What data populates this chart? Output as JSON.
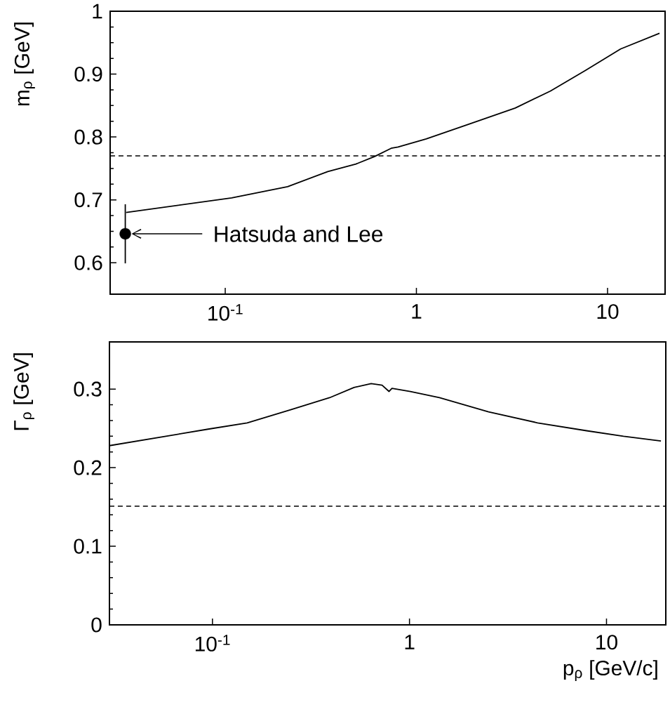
{
  "chart_data": [
    {
      "type": "line",
      "log": "x",
      "xlim": [
        0.025,
        20
      ],
      "ylim": [
        0.55,
        1
      ],
      "xticks": [
        {
          "value": 0.1,
          "label": "10$^{-1}$"
        },
        1,
        10
      ],
      "yticks": [
        0.6,
        0.7,
        0.8,
        0.9,
        1
      ],
      "ylabel": "m$_{ρ}$  [GeV]",
      "ref_lines": [
        {
          "axis": "y",
          "value": 0.77,
          "line_style": "dashed"
        }
      ],
      "annotations": [
        "Hatsuda and Lee"
      ],
      "series": [
        {
          "color": "#000000",
          "x": [
            0.0303,
            0.108,
            0.212,
            0.344,
            0.483,
            0.605,
            0.738,
            0.802,
            1.125,
            1.87,
            3.29,
            5.02,
            7.67,
            11.7,
            18.7
          ],
          "values": [
            0.68,
            0.703,
            0.721,
            0.745,
            0.757,
            0.769,
            0.782,
            0.784,
            0.797,
            0.82,
            0.846,
            0.873,
            0.906,
            0.94,
            0.965
          ]
        },
        {
          "type": "scatter",
          "color": "#000000",
          "marker": "circle",
          "x": [
            0.03
          ],
          "values": [
            0.646
          ],
          "errors": [
            0.047
          ]
        }
      ]
    },
    {
      "type": "line",
      "log": "x",
      "xlim": [
        0.03,
        20
      ],
      "ylim": [
        0,
        0.36
      ],
      "xticks": [
        {
          "value": 0.1,
          "label": "10$^{-1}$"
        },
        1,
        10
      ],
      "yticks": [
        0,
        0.1,
        0.2,
        0.3
      ],
      "ylabel": "Γ$_{ρ}$  [GeV]",
      "xlabel": "p$_{ρ}$  [GeV/c]",
      "ref_lines": [
        {
          "axis": "y",
          "value": 0.151,
          "line_style": "dashed"
        }
      ],
      "series": [
        {
          "color": "#000000",
          "x": [
            0.03,
            0.095,
            0.15,
            0.251,
            0.393,
            0.523,
            0.639,
            0.726,
            0.787,
            0.815,
            1.01,
            1.42,
            2.52,
            4.47,
            7.92,
            12.2,
            18.9
          ],
          "values": [
            0.228,
            0.249,
            0.257,
            0.274,
            0.289,
            0.302,
            0.307,
            0.305,
            0.297,
            0.301,
            0.297,
            0.289,
            0.271,
            0.257,
            0.247,
            0.24,
            0.234
          ]
        }
      ]
    }
  ]
}
